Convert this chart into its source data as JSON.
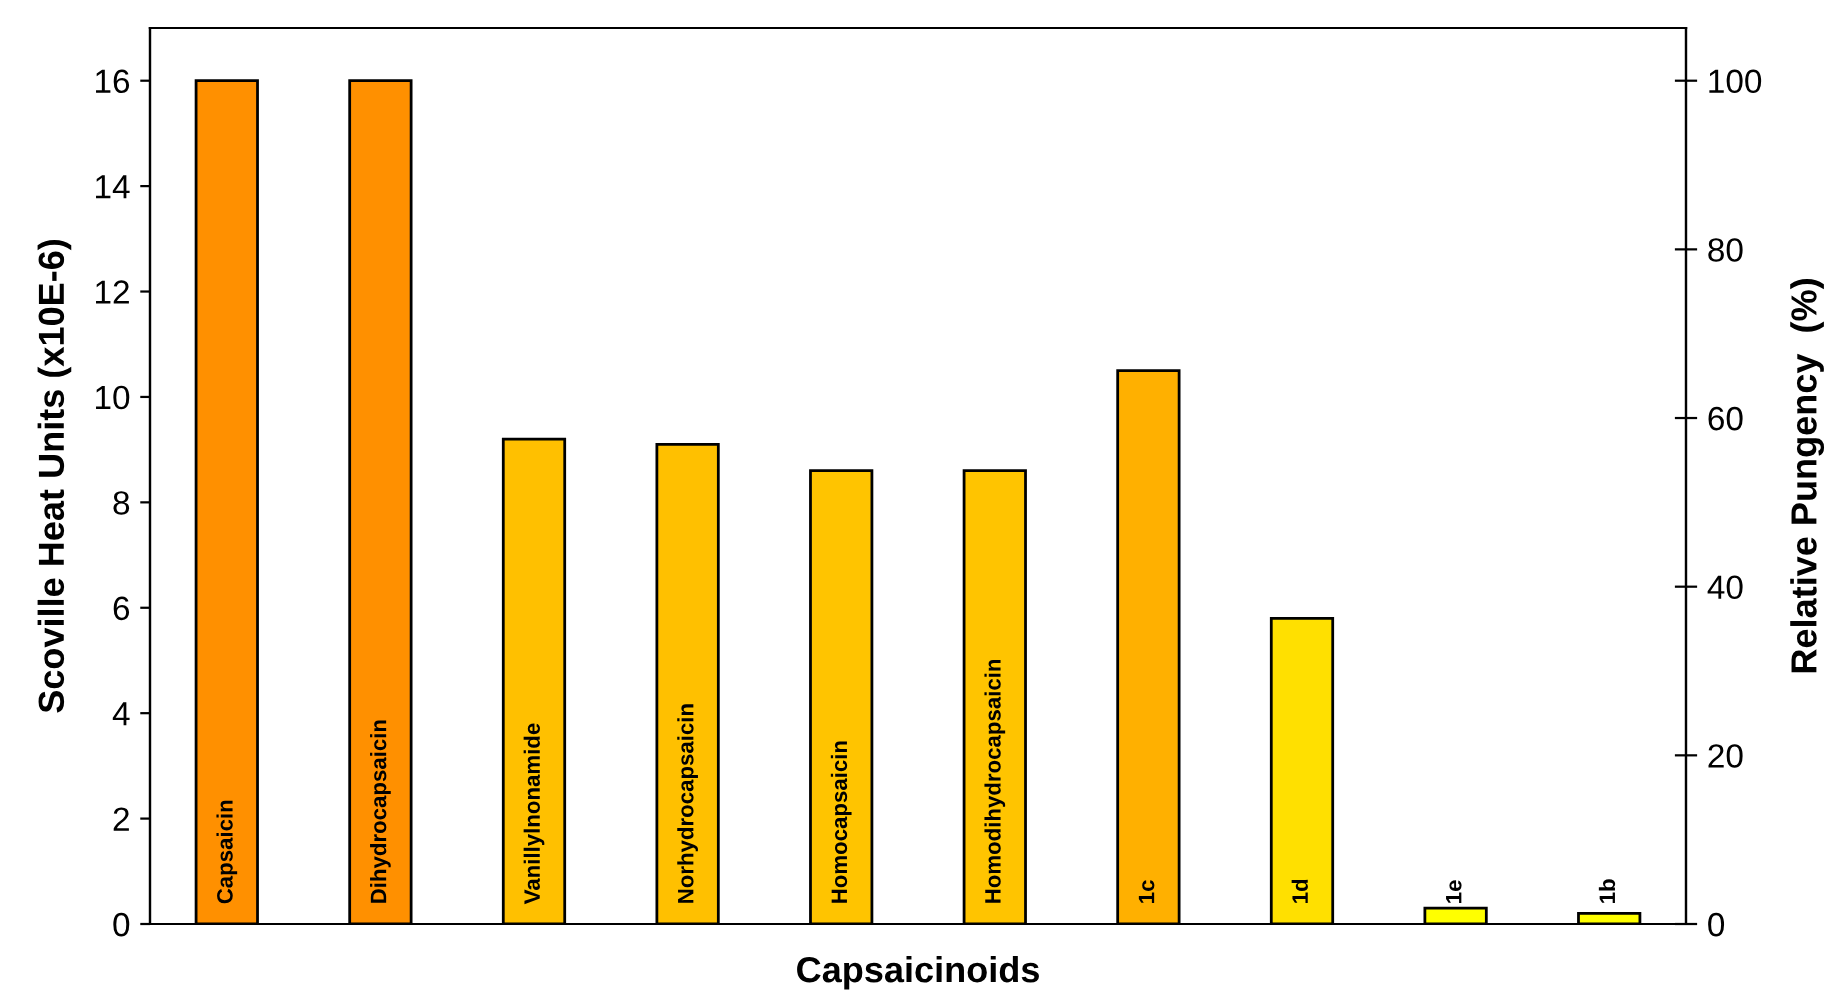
{
  "chart_data": {
    "type": "bar",
    "xlabel": "Capsaicinoids",
    "ylabel": "Scoville Heat Units (x10E-6)",
    "y2label": "Relative Pungency  (%)",
    "categories": [
      "Capsaicin",
      "Dihydrocapsaicin",
      "Vanillylnonamide",
      "Norhydrocapsaicin",
      "Homocapsaicin",
      "Homodihydrocapsaicin",
      "1c",
      "1d",
      "1e",
      "1b"
    ],
    "values": [
      16,
      16,
      9.2,
      9.1,
      8.6,
      8.6,
      10.5,
      5.8,
      0.3,
      0.2
    ],
    "colors": [
      "#ff9000",
      "#ff9000",
      "#ffc000",
      "#ffc000",
      "#ffc400",
      "#ffc400",
      "#ffb000",
      "#ffe000",
      "#ffff00",
      "#ffff00"
    ],
    "ylim": [
      0,
      17
    ],
    "yticks": [
      0,
      2,
      4,
      6,
      8,
      10,
      12,
      14,
      16
    ],
    "y2lim": [
      0,
      106.25
    ],
    "y2ticks": [
      0,
      20,
      40,
      60,
      80,
      100
    ],
    "tick_labels": "y",
    "grid": false,
    "legend": false
  }
}
